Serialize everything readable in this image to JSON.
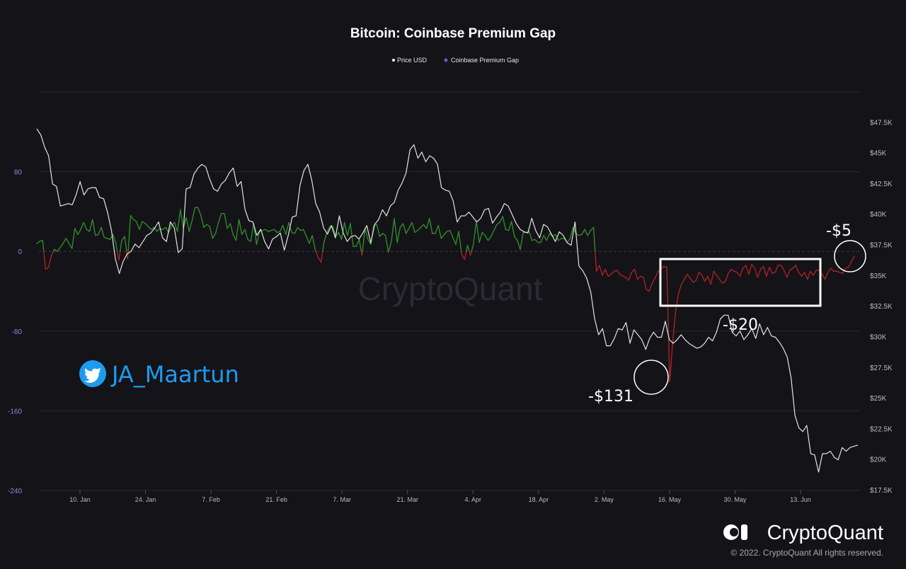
{
  "chart_data": {
    "type": "line",
    "title": "Bitcoin: Coinbase Premium Gap",
    "legend": [
      {
        "label": "Price USD",
        "color": "#ffffff"
      },
      {
        "label": "Coinbase Premium Gap",
        "color": "#6b5cf5"
      }
    ],
    "x_tick_labels": [
      "10. Jan",
      "24. Jan",
      "7. Feb",
      "21. Feb",
      "7. Mar",
      "21. Mar",
      "4. Apr",
      "18. Apr",
      "2. May",
      "16. May",
      "30. May",
      "13. Jun"
    ],
    "left_axis": {
      "ticks": [
        "80",
        "0",
        "-80",
        "-160",
        "-240"
      ],
      "values": [
        80,
        0,
        -80,
        -160,
        -240
      ],
      "range": [
        -240,
        160
      ]
    },
    "right_axis": {
      "ticks": [
        "$47.5K",
        "$45K",
        "$42.5K",
        "$40K",
        "$37.5K",
        "$35K",
        "$32.5K",
        "$30K",
        "$27.5K",
        "$25K",
        "$22.5K",
        "$20K",
        "$17.5K"
      ],
      "values": [
        47500,
        45000,
        42500,
        40000,
        37500,
        35000,
        32500,
        30000,
        27500,
        25000,
        22500,
        20000,
        17500
      ],
      "range": [
        17500,
        50000
      ]
    },
    "series": [
      {
        "name": "Price USD",
        "axis": "right",
        "color": "#e8e8e8",
        "values": [
          47000,
          46500,
          45500,
          44800,
          42500,
          42300,
          40700,
          40800,
          40900,
          40800,
          41600,
          42700,
          41600,
          42100,
          42200,
          42200,
          41400,
          41300,
          40200,
          38700,
          36400,
          35200,
          36200,
          36800,
          37000,
          37600,
          37300,
          37800,
          38300,
          38500,
          38900,
          39400,
          38100,
          37800,
          39400,
          38900,
          36900,
          37200,
          42100,
          42200,
          43300,
          43800,
          44100,
          43900,
          42900,
          42100,
          41900,
          42500,
          42800,
          43400,
          43800,
          42300,
          42700,
          40400,
          39500,
          39400,
          38300,
          38800,
          37800,
          37200,
          38000,
          38200,
          38500,
          37100,
          38300,
          39800,
          39900,
          42400,
          43600,
          44100,
          42800,
          40900,
          40200,
          38900,
          38400,
          39100,
          38100,
          39900,
          38500,
          37800,
          38200,
          38300,
          38000,
          38500,
          39100,
          37700,
          39200,
          39600,
          40400,
          39900,
          40700,
          41000,
          42000,
          42600,
          43400,
          45300,
          45700,
          44600,
          45100,
          44300,
          44800,
          44600,
          44100,
          42200,
          42000,
          41900,
          41100,
          39400,
          39900,
          39900,
          40200,
          39800,
          39400,
          39700,
          40400,
          40500,
          39300,
          39800,
          40200,
          40900,
          40700,
          40000,
          39300,
          38800,
          38600,
          38500,
          39700,
          38700,
          38100,
          39200,
          39000,
          38400,
          37800,
          38600,
          38300,
          37700,
          37500,
          39400,
          35800,
          35400,
          34800,
          33700,
          31500,
          30200,
          30700,
          29300,
          29300,
          29900,
          30700,
          30600,
          31200,
          29500,
          30600,
          30200,
          29800,
          29000,
          29900,
          30400,
          30000,
          30000,
          31300,
          29800,
          29500,
          29800,
          30200,
          29800,
          29500,
          29300,
          29100,
          29200,
          29500,
          30000,
          29700,
          30400,
          31500,
          31800,
          31800,
          30400,
          30100,
          30500,
          29800,
          30200,
          30700,
          29900,
          31100,
          30200,
          30800,
          30100,
          30000,
          29600,
          29100,
          28400,
          26700,
          23600,
          22600,
          22300,
          22800,
          20500,
          20400,
          19000,
          20500,
          20500,
          20700,
          20200,
          20000,
          21000,
          20700,
          21000,
          21100,
          21200
        ]
      },
      {
        "name": "Coinbase Premium Gap",
        "axis": "left",
        "color_positive": "#2f8a2a",
        "color_negative": "#a82222",
        "values": [
          8,
          10,
          11,
          -18,
          -16,
          -4,
          2,
          0,
          4,
          8,
          13,
          8,
          3,
          23,
          17,
          22,
          29,
          22,
          20,
          32,
          16,
          17,
          24,
          14,
          13,
          12,
          17,
          8,
          -9,
          11,
          15,
          -8,
          36,
          32,
          30,
          22,
          30,
          28,
          25,
          22,
          24,
          20,
          23,
          22,
          24,
          19,
          26,
          29,
          20,
          42,
          23,
          34,
          20,
          31,
          44,
          44,
          36,
          24,
          27,
          25,
          13,
          18,
          29,
          38,
          38,
          23,
          28,
          17,
          11,
          32,
          17,
          22,
          12,
          10,
          28,
          7,
          20,
          21,
          22,
          20,
          21,
          22,
          19,
          20,
          26,
          17,
          29,
          19,
          18,
          24,
          21,
          22,
          15,
          8,
          16,
          2,
          -6,
          -11,
          9,
          19,
          25,
          25,
          15,
          19,
          12,
          29,
          16,
          28,
          5,
          5,
          12,
          -4,
          23,
          12,
          7,
          26,
          27,
          15,
          18,
          16,
          -1,
          10,
          33,
          9,
          24,
          28,
          18,
          23,
          29,
          19,
          21,
          24,
          27,
          23,
          33,
          18,
          18,
          26,
          13,
          17,
          20,
          21,
          14,
          7,
          20,
          -3,
          -8,
          6,
          -4,
          7,
          30,
          9,
          19,
          16,
          11,
          15,
          21,
          27,
          29,
          35,
          22,
          21,
          30,
          15,
          11,
          2,
          19,
          19,
          20,
          11,
          12,
          9,
          9,
          16,
          11,
          18,
          15,
          17,
          11,
          13,
          13,
          9,
          13,
          24,
          18,
          16,
          17,
          22,
          16,
          21,
          24,
          -20,
          -14,
          -24,
          -18,
          -25,
          -23,
          -20,
          -19,
          -23,
          -25,
          -26,
          -29,
          -21,
          -18,
          -28,
          -25,
          -26,
          -38,
          -40,
          -32,
          -27,
          -20,
          -18,
          -15,
          -16,
          -131,
          -92,
          -60,
          -42,
          -33,
          -28,
          -23,
          -27,
          -31,
          -29,
          -21,
          -24,
          -30,
          -25,
          -33,
          -20,
          -24,
          -28,
          -32,
          -30,
          -22,
          -18,
          -20,
          -21,
          -25,
          -17,
          -14,
          -23,
          -13,
          -17,
          -26,
          -18,
          -15,
          -25,
          -16,
          -22,
          -21,
          -14,
          -14,
          -19,
          -26,
          -19,
          -17,
          -14,
          -21,
          -25,
          -21,
          -28,
          -20,
          -24,
          -19,
          -19,
          -23,
          -28,
          -21,
          -17,
          -20,
          -20,
          -21,
          -22,
          -17,
          -16,
          -10,
          -5
        ]
      }
    ],
    "annotations": [
      {
        "label": "-$131"
      },
      {
        "label": "-$20"
      },
      {
        "label": "-$5"
      }
    ],
    "watermark": "CryptoQuant"
  },
  "credit": {
    "handle": "JA_Maartun"
  },
  "brand": {
    "name": "CryptoQuant",
    "copyright": "© 2022. CryptoQuant All rights reserved."
  }
}
